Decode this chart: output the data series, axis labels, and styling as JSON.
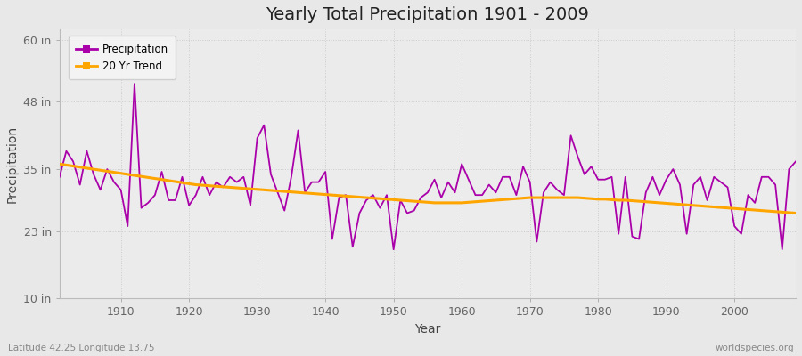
{
  "title": "Yearly Total Precipitation 1901 - 2009",
  "xlabel": "Year",
  "ylabel": "Precipitation",
  "bottom_left_label": "Latitude 42.25 Longitude 13.75",
  "bottom_right_label": "worldspecies.org",
  "background_color": "#e8e8e8",
  "plot_bg_color": "#ebebeb",
  "line_color": "#aa00aa",
  "trend_color": "#ffa500",
  "ylim": [
    10,
    62
  ],
  "yticks": [
    10,
    23,
    35,
    48,
    60
  ],
  "ytick_labels": [
    "10 in",
    "23 in",
    "35 in",
    "48 in",
    "60 in"
  ],
  "xlim": [
    1901,
    2009
  ],
  "xticks": [
    1910,
    1920,
    1930,
    1940,
    1950,
    1960,
    1970,
    1980,
    1990,
    2000
  ],
  "years": [
    1901,
    1902,
    1903,
    1904,
    1905,
    1906,
    1907,
    1908,
    1909,
    1910,
    1911,
    1912,
    1913,
    1914,
    1915,
    1916,
    1917,
    1918,
    1919,
    1920,
    1921,
    1922,
    1923,
    1924,
    1925,
    1926,
    1927,
    1928,
    1929,
    1930,
    1931,
    1932,
    1933,
    1934,
    1935,
    1936,
    1937,
    1938,
    1939,
    1940,
    1941,
    1942,
    1943,
    1944,
    1945,
    1946,
    1947,
    1948,
    1949,
    1950,
    1951,
    1952,
    1953,
    1954,
    1955,
    1956,
    1957,
    1958,
    1959,
    1960,
    1961,
    1962,
    1963,
    1964,
    1965,
    1966,
    1967,
    1968,
    1969,
    1970,
    1971,
    1972,
    1973,
    1974,
    1975,
    1976,
    1977,
    1978,
    1979,
    1980,
    1981,
    1982,
    1983,
    1984,
    1985,
    1986,
    1987,
    1988,
    1989,
    1990,
    1991,
    1992,
    1993,
    1994,
    1995,
    1996,
    1997,
    1998,
    1999,
    2000,
    2001,
    2002,
    2003,
    2004,
    2005,
    2006,
    2007,
    2008,
    2009
  ],
  "precipitation": [
    33.5,
    38.5,
    36.5,
    32.0,
    38.5,
    34.0,
    31.0,
    35.0,
    32.5,
    31.0,
    24.0,
    51.5,
    27.5,
    28.5,
    30.0,
    34.5,
    29.0,
    29.0,
    33.5,
    28.0,
    30.0,
    33.5,
    30.0,
    32.5,
    31.5,
    33.5,
    32.5,
    33.5,
    28.0,
    41.0,
    43.5,
    34.0,
    30.5,
    27.0,
    33.5,
    42.5,
    30.5,
    32.5,
    32.5,
    34.5,
    21.5,
    29.5,
    30.0,
    20.0,
    26.5,
    29.0,
    30.0,
    27.5,
    30.0,
    19.5,
    29.0,
    26.5,
    27.0,
    29.5,
    30.5,
    33.0,
    29.5,
    32.5,
    30.5,
    36.0,
    33.0,
    30.0,
    30.0,
    32.0,
    30.5,
    33.5,
    33.5,
    30.0,
    35.5,
    32.5,
    21.0,
    30.5,
    32.5,
    31.0,
    30.0,
    41.5,
    37.5,
    34.0,
    35.5,
    33.0,
    33.0,
    33.5,
    22.5,
    33.5,
    22.0,
    21.5,
    30.5,
    33.5,
    30.0,
    33.0,
    35.0,
    32.0,
    22.5,
    32.0,
    33.5,
    29.0,
    33.5,
    32.5,
    31.5,
    24.0,
    22.5,
    30.0,
    28.5,
    33.5,
    33.5,
    32.0,
    19.5,
    35.0,
    36.5
  ],
  "trend": [
    36.0,
    35.8,
    35.6,
    35.4,
    35.2,
    35.0,
    34.8,
    34.6,
    34.4,
    34.2,
    34.0,
    33.8,
    33.6,
    33.4,
    33.2,
    33.0,
    32.8,
    32.6,
    32.4,
    32.2,
    32.0,
    31.9,
    31.8,
    31.7,
    31.6,
    31.5,
    31.4,
    31.3,
    31.2,
    31.1,
    31.0,
    30.9,
    30.8,
    30.7,
    30.6,
    30.5,
    30.4,
    30.3,
    30.2,
    30.1,
    30.0,
    29.9,
    29.8,
    29.7,
    29.6,
    29.5,
    29.4,
    29.3,
    29.2,
    29.1,
    29.0,
    28.9,
    28.8,
    28.7,
    28.6,
    28.5,
    28.5,
    28.5,
    28.5,
    28.5,
    28.6,
    28.7,
    28.8,
    28.9,
    29.0,
    29.1,
    29.2,
    29.3,
    29.4,
    29.5,
    29.5,
    29.5,
    29.5,
    29.5,
    29.5,
    29.5,
    29.5,
    29.4,
    29.3,
    29.2,
    29.2,
    29.1,
    29.0,
    29.0,
    28.9,
    28.8,
    28.7,
    28.6,
    28.5,
    28.4,
    28.3,
    28.2,
    28.1,
    28.0,
    27.9,
    27.8,
    27.7,
    27.6,
    27.5,
    27.4,
    27.3,
    27.2,
    27.1,
    27.0,
    26.9,
    26.8,
    26.7,
    26.6,
    26.5
  ]
}
